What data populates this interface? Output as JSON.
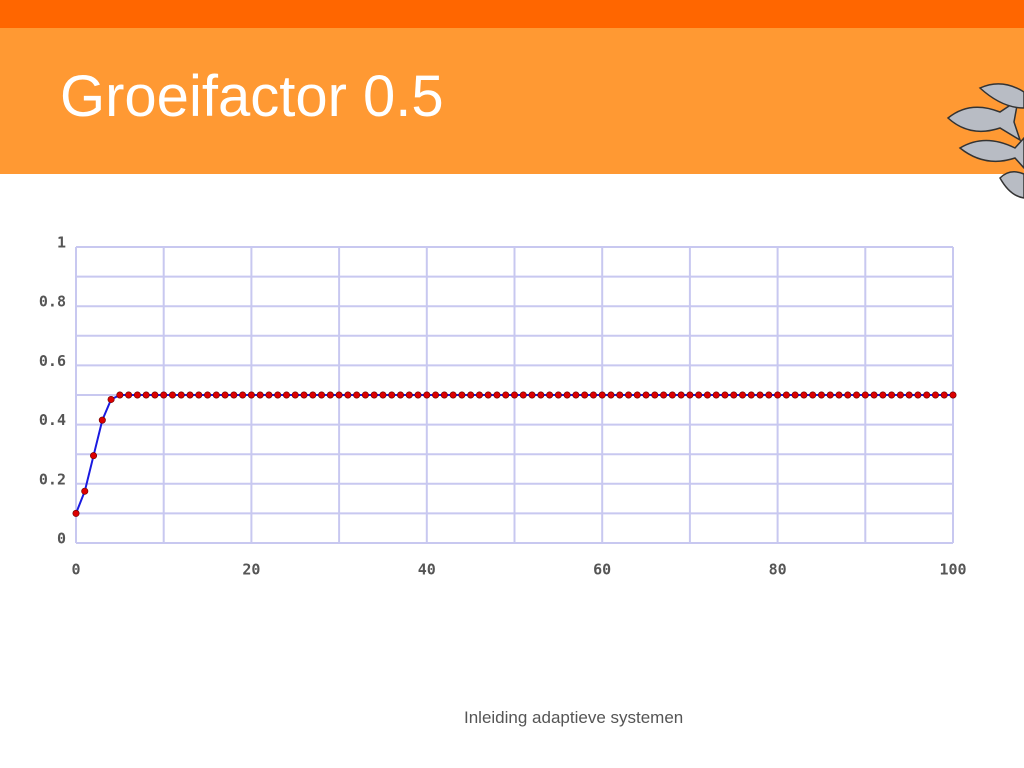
{
  "header": {
    "title": "Groeifactor 0.5"
  },
  "footer": {
    "text": "Inleiding adaptieve systemen"
  },
  "chart_data": {
    "type": "line",
    "x": [
      0,
      1,
      2,
      3,
      4,
      5,
      6,
      7,
      8,
      9,
      10,
      11,
      12,
      13,
      14,
      15,
      16,
      17,
      18,
      19,
      20,
      21,
      22,
      23,
      24,
      25,
      26,
      27,
      28,
      29,
      30,
      31,
      32,
      33,
      34,
      35,
      36,
      37,
      38,
      39,
      40,
      41,
      42,
      43,
      44,
      45,
      46,
      47,
      48,
      49,
      50,
      51,
      52,
      53,
      54,
      55,
      56,
      57,
      58,
      59,
      60,
      61,
      62,
      63,
      64,
      65,
      66,
      67,
      68,
      69,
      70,
      71,
      72,
      73,
      74,
      75,
      76,
      77,
      78,
      79,
      80,
      81,
      82,
      83,
      84,
      85,
      86,
      87,
      88,
      89,
      90,
      91,
      92,
      93,
      94,
      95,
      96,
      97,
      98,
      99,
      100
    ],
    "series": [
      {
        "color": "#1a1ae0",
        "marker_color": "#dd0000",
        "values": [
          0.1,
          0.175,
          0.295,
          0.415,
          0.485,
          0.5,
          0.5,
          0.5,
          0.5,
          0.5,
          0.5,
          0.5,
          0.5,
          0.5,
          0.5,
          0.5,
          0.5,
          0.5,
          0.5,
          0.5,
          0.5,
          0.5,
          0.5,
          0.5,
          0.5,
          0.5,
          0.5,
          0.5,
          0.5,
          0.5,
          0.5,
          0.5,
          0.5,
          0.5,
          0.5,
          0.5,
          0.5,
          0.5,
          0.5,
          0.5,
          0.5,
          0.5,
          0.5,
          0.5,
          0.5,
          0.5,
          0.5,
          0.5,
          0.5,
          0.5,
          0.5,
          0.5,
          0.5,
          0.5,
          0.5,
          0.5,
          0.5,
          0.5,
          0.5,
          0.5,
          0.5,
          0.5,
          0.5,
          0.5,
          0.5,
          0.5,
          0.5,
          0.5,
          0.5,
          0.5,
          0.5,
          0.5,
          0.5,
          0.5,
          0.5,
          0.5,
          0.5,
          0.5,
          0.5,
          0.5,
          0.5,
          0.5,
          0.5,
          0.5,
          0.5,
          0.5,
          0.5,
          0.5,
          0.5,
          0.5,
          0.5,
          0.5,
          0.5,
          0.5,
          0.5,
          0.5,
          0.5,
          0.5,
          0.5,
          0.5,
          0.5
        ]
      }
    ],
    "xlim": [
      0,
      100
    ],
    "ylim": [
      0,
      1
    ],
    "xticks": [
      0,
      20,
      40,
      60,
      80,
      100
    ],
    "yticks": [
      0,
      0.2,
      0.4,
      0.6,
      0.8,
      1
    ],
    "grid": true
  }
}
